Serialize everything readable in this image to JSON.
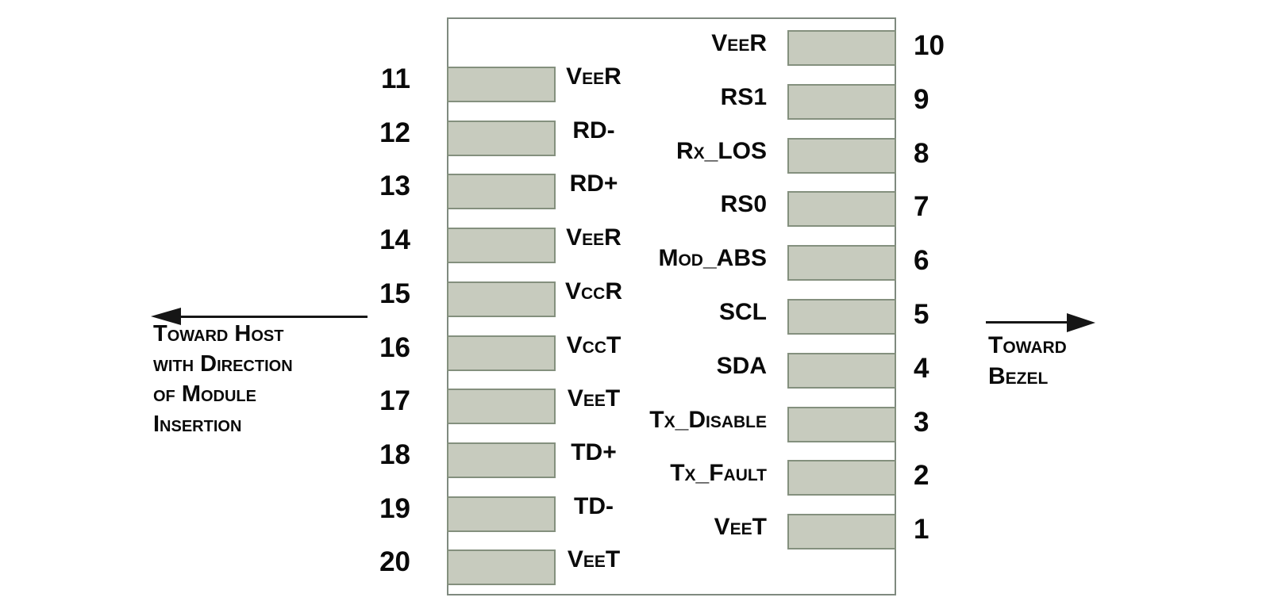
{
  "figure": {
    "title_hint": "SFP module 20-pin edge connector pinout",
    "left_pins": [
      {
        "number": "11",
        "label": "VeeR"
      },
      {
        "number": "12",
        "label": "RD-"
      },
      {
        "number": "13",
        "label": "RD+"
      },
      {
        "number": "14",
        "label": "VeeR"
      },
      {
        "number": "15",
        "label": "VccR"
      },
      {
        "number": "16",
        "label": "VccT"
      },
      {
        "number": "17",
        "label": "VeeT"
      },
      {
        "number": "18",
        "label": "TD+"
      },
      {
        "number": "19",
        "label": "TD-"
      },
      {
        "number": "20",
        "label": "VeeT"
      }
    ],
    "right_pins": [
      {
        "number": "10",
        "label": "VeeR"
      },
      {
        "number": "9",
        "label": "RS1"
      },
      {
        "number": "8",
        "label": "Rx_LOS"
      },
      {
        "number": "7",
        "label": "RS0"
      },
      {
        "number": "6",
        "label": "Mod_ABS"
      },
      {
        "number": "5",
        "label": "SCL"
      },
      {
        "number": "4",
        "label": "SDA"
      },
      {
        "number": "3",
        "label": "Tx_Disable"
      },
      {
        "number": "2",
        "label": "Tx_Fault"
      },
      {
        "number": "1",
        "label": "VeeT"
      }
    ],
    "left_annotation": {
      "lines": [
        "Toward Host",
        "with Direction",
        "of Module",
        "Insertion"
      ]
    },
    "right_annotation": {
      "lines": [
        "Toward",
        "Bezel"
      ]
    },
    "colors": {
      "pad_fill": "#c7cbbe",
      "pad_border": "#84907e",
      "module_outline": "#7f8a7f",
      "ink": "#0a0a0a",
      "arrow": "#161616",
      "background": "#ffffff"
    }
  }
}
